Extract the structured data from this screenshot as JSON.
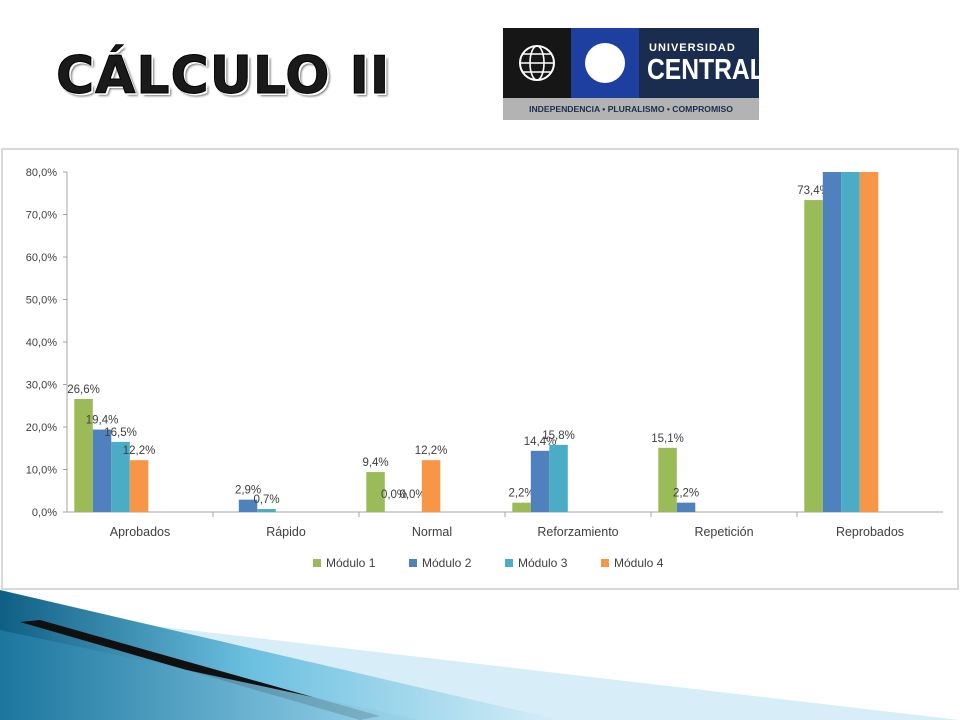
{
  "slide": {
    "title": "CÁLCULO II"
  },
  "logo": {
    "line1": "UNIVERSIDAD",
    "line2": "CENTRAL",
    "motto": "INDEPENDENCIA • PLURALISMO • COMPROMISO"
  },
  "chart_data": {
    "type": "bar",
    "title": "",
    "xlabel": "",
    "ylabel": "",
    "ylim": [
      0,
      80
    ],
    "y_ticks": [
      "0,0%",
      "10,0%",
      "20,0%",
      "30,0%",
      "40,0%",
      "50,0%",
      "60,0%",
      "70,0%",
      "80,0%"
    ],
    "categories": [
      "Aprobados",
      "Rápido",
      "Normal",
      "Reforzamiento",
      "Repetición",
      "Reprobados"
    ],
    "legend_position": "bottom",
    "grid": false,
    "series": [
      {
        "name": "Módulo 1",
        "color": "#9bbb59",
        "values": [
          26.6,
          null,
          9.4,
          2.2,
          15.1,
          73.4
        ],
        "labels": [
          "26,6%",
          "",
          "9,4%",
          "2,2%",
          "15,1%",
          "73,4%"
        ]
      },
      {
        "name": "Módulo 2",
        "color": "#4f81bd",
        "values": [
          19.4,
          2.9,
          0.0,
          14.4,
          2.2,
          80
        ],
        "labels": [
          "19,4%",
          "2,9%",
          "0,0%",
          "14,4%",
          "2,2%",
          ""
        ]
      },
      {
        "name": "Módulo 3",
        "color": "#4bacc6",
        "values": [
          16.5,
          0.7,
          0.0,
          15.8,
          null,
          80
        ],
        "labels": [
          "16,5%",
          "0,7%",
          "0,0%",
          "15,8%",
          "",
          ""
        ]
      },
      {
        "name": "Módulo 4",
        "color": "#f79646",
        "values": [
          12.2,
          null,
          12.2,
          null,
          null,
          80
        ],
        "labels": [
          "12,2%",
          "",
          "12,2%",
          "",
          "",
          ""
        ]
      }
    ]
  }
}
